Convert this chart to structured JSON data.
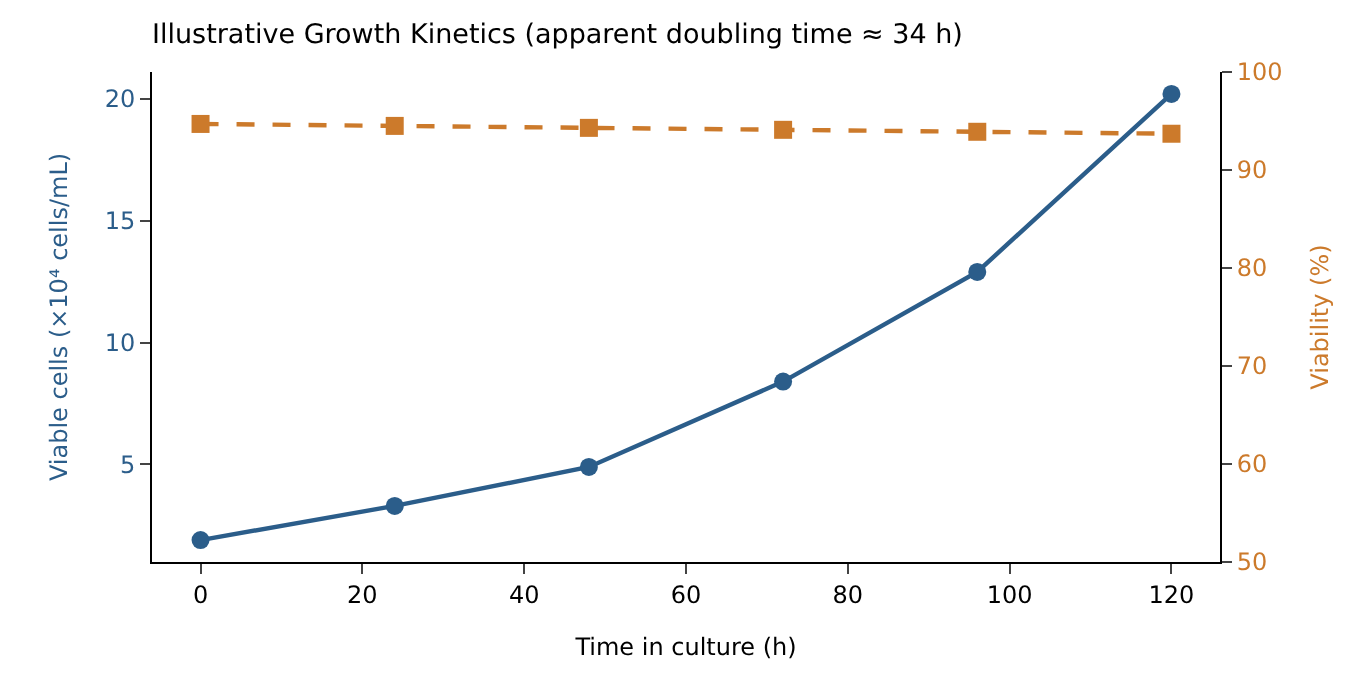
{
  "chart_data": {
    "type": "line",
    "title": "Illustrative Growth Kinetics (apparent doubling time ≈ 34 h)",
    "xlabel": "Time in culture (h)",
    "ylabel": "Viable cells (×10⁴ cells/mL)",
    "y2label": "Viability (%)",
    "x": [
      0,
      24,
      48,
      72,
      96,
      120
    ],
    "series": [
      {
        "color": "#2b5d8a",
        "values": [
          1.9,
          3.3,
          4.9,
          8.4,
          12.9,
          20.2
        ],
        "marker": "circle",
        "line_style": "solid"
      },
      {
        "color": "#cc7a2b",
        "values": [
          94.7,
          94.5,
          94.3,
          94.1,
          93.9,
          93.7
        ],
        "marker": "square",
        "line_style": "dashed",
        "axis": "y2"
      }
    ],
    "xlim": [
      -6,
      126
    ],
    "xticks": [
      0,
      20,
      40,
      60,
      80,
      100,
      120
    ],
    "ylim": [
      1.0,
      21.1
    ],
    "yticks": [
      5,
      10,
      15,
      20
    ],
    "y2lim": [
      50,
      100
    ],
    "y2ticks": [
      50,
      60,
      70,
      80,
      90,
      100
    ],
    "legend": false
  }
}
